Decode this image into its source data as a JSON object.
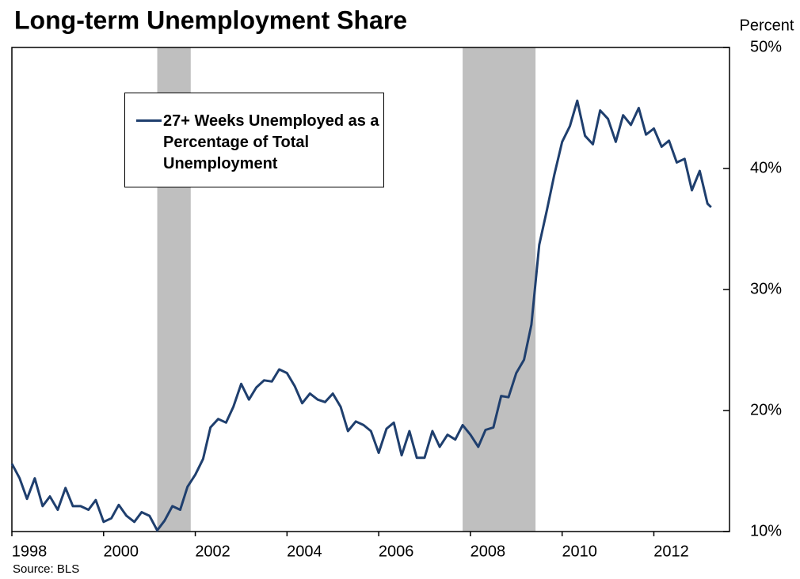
{
  "chart_data": {
    "type": "line",
    "title": "Long-term Unemployment Share",
    "y_axis_label": "Percent",
    "source": "Source:  BLS",
    "xlim": [
      1998,
      2013.65
    ],
    "xticks": [
      1998,
      2000,
      2002,
      2004,
      2006,
      2008,
      2010,
      2012
    ],
    "ylim": [
      10,
      50
    ],
    "yticks": [
      {
        "value": 10,
        "label": "10%"
      },
      {
        "value": 20,
        "label": "20%"
      },
      {
        "value": 30,
        "label": "30%"
      },
      {
        "value": 40,
        "label": "40%"
      },
      {
        "value": 50,
        "label": "50%"
      }
    ],
    "shaded_ranges": [
      [
        2001.17,
        2001.9
      ],
      [
        2007.83,
        2009.42
      ]
    ],
    "shade_color": "#bfbfbf",
    "x": [
      1998.0,
      1998.17,
      1998.33,
      1998.5,
      1998.67,
      1998.83,
      1999.0,
      1999.17,
      1999.33,
      1999.5,
      1999.67,
      1999.83,
      2000.0,
      2000.17,
      2000.33,
      2000.5,
      2000.67,
      2000.83,
      2001.0,
      2001.17,
      2001.33,
      2001.5,
      2001.67,
      2001.83,
      2002.0,
      2002.17,
      2002.33,
      2002.5,
      2002.67,
      2002.83,
      2003.0,
      2003.17,
      2003.33,
      2003.5,
      2003.67,
      2003.83,
      2004.0,
      2004.17,
      2004.33,
      2004.5,
      2004.67,
      2004.83,
      2005.0,
      2005.17,
      2005.33,
      2005.5,
      2005.67,
      2005.83,
      2006.0,
      2006.17,
      2006.33,
      2006.5,
      2006.67,
      2006.83,
      2007.0,
      2007.17,
      2007.33,
      2007.5,
      2007.67,
      2007.83,
      2008.0,
      2008.17,
      2008.33,
      2008.5,
      2008.67,
      2008.83,
      2009.0,
      2009.17,
      2009.33,
      2009.5,
      2009.67,
      2009.83,
      2010.0,
      2010.17,
      2010.33,
      2010.5,
      2010.67,
      2010.83,
      2011.0,
      2011.17,
      2011.33,
      2011.5,
      2011.67,
      2011.83,
      2012.0,
      2012.17,
      2012.33,
      2012.5,
      2012.67,
      2012.83,
      2013.0,
      2013.17,
      2013.25
    ],
    "series": [
      {
        "name": "27+ Weeks Unemployed as a Percentage of Total Unemployment",
        "color": "#1f3f6e",
        "values": [
          15.6,
          14.4,
          12.7,
          14.4,
          12.1,
          12.9,
          11.8,
          13.6,
          12.1,
          12.1,
          11.8,
          12.6,
          10.8,
          11.1,
          12.2,
          11.3,
          10.8,
          11.6,
          11.3,
          10.1,
          10.9,
          12.1,
          11.8,
          13.7,
          14.7,
          16.0,
          18.6,
          19.3,
          19.0,
          20.3,
          22.2,
          20.9,
          21.9,
          22.5,
          22.4,
          23.4,
          23.1,
          22.0,
          20.6,
          21.4,
          20.9,
          20.7,
          21.4,
          20.3,
          18.3,
          19.1,
          18.8,
          18.3,
          16.5,
          18.5,
          19.0,
          16.3,
          18.3,
          16.1,
          16.1,
          18.3,
          17.0,
          18.0,
          17.6,
          18.8,
          18.0,
          17.0,
          18.4,
          18.6,
          21.2,
          21.1,
          23.1,
          24.2,
          27.1,
          33.7,
          36.6,
          39.5,
          42.2,
          43.5,
          45.6,
          42.7,
          42.0,
          44.8,
          44.1,
          42.2,
          44.4,
          43.6,
          45.0,
          42.8,
          43.3,
          41.8,
          42.3,
          40.5,
          40.8,
          38.2,
          39.8,
          37.1,
          36.8
        ]
      }
    ]
  }
}
